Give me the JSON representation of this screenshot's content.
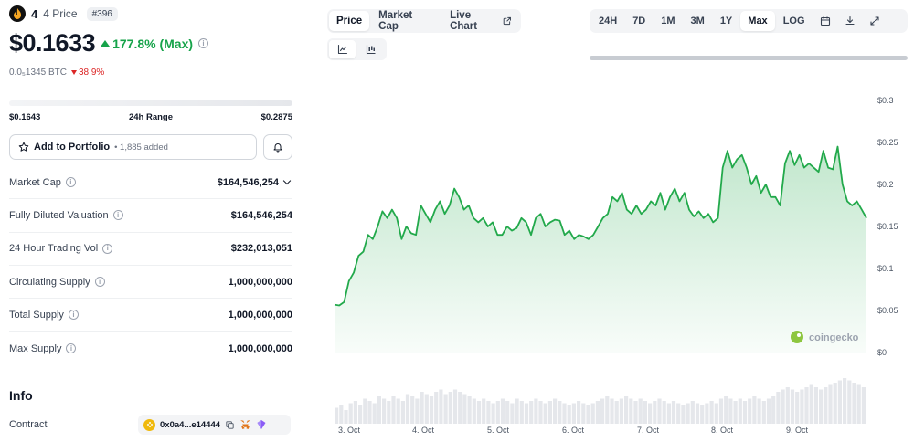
{
  "coin": {
    "name": "4",
    "subtitle": "4 Price",
    "rank": "#396",
    "price": "$0.1633",
    "change_pct": "177.8% (Max)",
    "btc_price": "0.0₅1345 BTC",
    "btc_change": "38.9%"
  },
  "range_24h": {
    "low": "$0.1643",
    "label": "24h Range",
    "high": "$0.2875"
  },
  "portfolio": {
    "label": "Add to Portfolio",
    "count": "• 1,885 added"
  },
  "stats": [
    {
      "label": "Market Cap",
      "value": "$164,546,254"
    },
    {
      "label": "Fully Diluted Valuation",
      "value": "$164,546,254"
    },
    {
      "label": "24 Hour Trading Vol",
      "value": "$232,013,051"
    },
    {
      "label": "Circulating Supply",
      "value": "1,000,000,000"
    },
    {
      "label": "Total Supply",
      "value": "1,000,000,000"
    },
    {
      "label": "Max Supply",
      "value": "1,000,000,000"
    }
  ],
  "info": {
    "title": "Info",
    "contract_label": "Contract",
    "contract_address": "0x0a4...e14444"
  },
  "tabs": [
    "Price",
    "Market Cap",
    "Live Chart"
  ],
  "ranges": [
    "24H",
    "7D",
    "1M",
    "3M",
    "1Y",
    "Max",
    "LOG"
  ],
  "colors": {
    "up": "#16a34a",
    "down": "#dc2626",
    "line": "#22a94b"
  },
  "icons": [
    "flame-logo-icon",
    "info-icon",
    "star-icon",
    "bell-icon",
    "external-link-icon",
    "line-chart-icon",
    "candlestick-icon",
    "calendar-icon",
    "download-icon",
    "expand-icon",
    "copy-icon",
    "metamask-icon",
    "wallet-icon"
  ],
  "chart_data": {
    "type": "line",
    "watermark": "coingecko",
    "ylim": [
      0,
      0.3
    ],
    "y_ticks": [
      "$0.3",
      "$0.25",
      "$0.2",
      "$0.15",
      "$0.1",
      "$0.05",
      "$0"
    ],
    "x_ticks": [
      "3. Oct",
      "4. Oct",
      "5. Oct",
      "6. Oct",
      "7. Oct",
      "8. Oct",
      "9. Oct"
    ],
    "x_range": [
      "3. Oct",
      "9. Oct"
    ],
    "values": [
      0.057,
      0.056,
      0.06,
      0.085,
      0.095,
      0.115,
      0.12,
      0.14,
      0.135,
      0.15,
      0.168,
      0.16,
      0.17,
      0.16,
      0.135,
      0.15,
      0.142,
      0.14,
      0.175,
      0.165,
      0.155,
      0.17,
      0.18,
      0.165,
      0.175,
      0.195,
      0.185,
      0.17,
      0.175,
      0.16,
      0.155,
      0.16,
      0.15,
      0.155,
      0.14,
      0.14,
      0.15,
      0.145,
      0.148,
      0.16,
      0.155,
      0.14,
      0.16,
      0.165,
      0.15,
      0.155,
      0.158,
      0.157,
      0.14,
      0.145,
      0.135,
      0.14,
      0.138,
      0.135,
      0.14,
      0.15,
      0.16,
      0.165,
      0.185,
      0.18,
      0.19,
      0.17,
      0.165,
      0.175,
      0.165,
      0.17,
      0.18,
      0.175,
      0.19,
      0.17,
      0.185,
      0.195,
      0.18,
      0.19,
      0.17,
      0.162,
      0.168,
      0.16,
      0.165,
      0.155,
      0.16,
      0.22,
      0.24,
      0.22,
      0.23,
      0.235,
      0.22,
      0.2,
      0.21,
      0.19,
      0.2,
      0.185,
      0.185,
      0.175,
      0.225,
      0.24,
      0.223,
      0.235,
      0.22,
      0.225,
      0.22,
      0.215,
      0.24,
      0.22,
      0.218,
      0.245,
      0.2,
      0.18,
      0.175,
      0.18,
      0.17,
      0.16
    ],
    "volume_rel": [
      0.35,
      0.4,
      0.3,
      0.45,
      0.5,
      0.4,
      0.55,
      0.5,
      0.45,
      0.6,
      0.55,
      0.5,
      0.6,
      0.55,
      0.5,
      0.65,
      0.6,
      0.55,
      0.7,
      0.65,
      0.6,
      0.7,
      0.75,
      0.65,
      0.7,
      0.75,
      0.7,
      0.65,
      0.6,
      0.55,
      0.5,
      0.55,
      0.5,
      0.45,
      0.5,
      0.55,
      0.5,
      0.45,
      0.55,
      0.5,
      0.45,
      0.5,
      0.55,
      0.5,
      0.45,
      0.5,
      0.55,
      0.5,
      0.45,
      0.4,
      0.45,
      0.5,
      0.45,
      0.4,
      0.45,
      0.5,
      0.55,
      0.6,
      0.55,
      0.5,
      0.55,
      0.6,
      0.55,
      0.5,
      0.55,
      0.5,
      0.45,
      0.5,
      0.55,
      0.5,
      0.45,
      0.5,
      0.45,
      0.4,
      0.45,
      0.5,
      0.45,
      0.4,
      0.45,
      0.5,
      0.45,
      0.55,
      0.6,
      0.55,
      0.5,
      0.55,
      0.5,
      0.55,
      0.6,
      0.55,
      0.5,
      0.55,
      0.6,
      0.7,
      0.75,
      0.8,
      0.75,
      0.7,
      0.75,
      0.8,
      0.85,
      0.8,
      0.75,
      0.8,
      0.85,
      0.9,
      0.95,
      1.0,
      0.95,
      0.9,
      0.85,
      0.8
    ]
  }
}
